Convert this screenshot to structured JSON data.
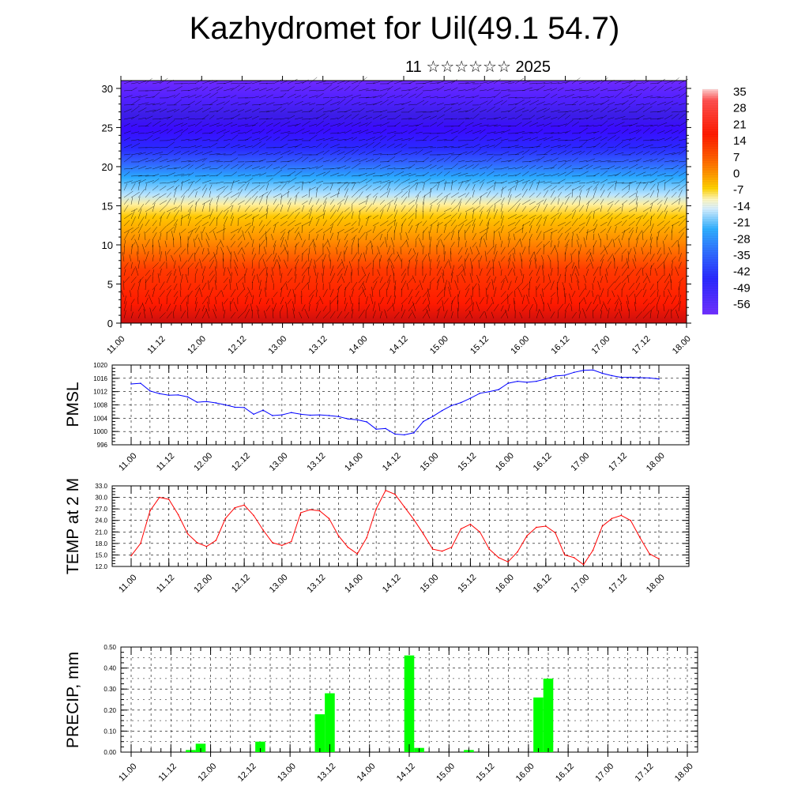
{
  "header": {
    "title": "Kazhydromet for Uil(49.1 54.7)",
    "subtitle": "11 ☆☆☆☆☆☆ 2025"
  },
  "time_labels": [
    "11.00",
    "11.12",
    "12.00",
    "12.12",
    "13.00",
    "13.12",
    "14.00",
    "14.12",
    "15.00",
    "15.12",
    "16.00",
    "16.12",
    "17.00",
    "17.12",
    "18.00"
  ],
  "colorbar": {
    "labels": [
      "35",
      "28",
      "21",
      "14",
      "7",
      "0",
      "-7",
      "-14",
      "-21",
      "-28",
      "-35",
      "-42",
      "-49",
      "-56"
    ]
  },
  "chart_data": [
    {
      "type": "heatmap",
      "name": "temperature-wind-cross-section",
      "x_ticks": [
        "11.00",
        "11.12",
        "12.00",
        "12.12",
        "13.00",
        "13.12",
        "14.00",
        "14.12",
        "15.00",
        "15.12",
        "16.00",
        "16.12",
        "17.00",
        "17.12",
        "18.00"
      ],
      "y_ticks": [
        "0",
        "5",
        "10",
        "15",
        "20",
        "25",
        "30"
      ],
      "ylim": [
        0,
        31
      ],
      "colorbar_range": [
        -56,
        35
      ],
      "description_levels": [
        {
          "level_km": 0,
          "value": 28
        },
        {
          "level_km": 5,
          "value": 24
        },
        {
          "level_km": 10,
          "value": 14
        },
        {
          "level_km": 14,
          "value": -2
        },
        {
          "level_km": 17,
          "value": -14
        },
        {
          "level_km": 20,
          "value": -30
        },
        {
          "level_km": 23,
          "value": -48
        },
        {
          "level_km": 26,
          "value": -58
        },
        {
          "level_km": 31,
          "value": -52
        }
      ]
    },
    {
      "type": "line",
      "name": "pmsl",
      "ylabel": "PMSL",
      "y_ticks": [
        "1020",
        "1016",
        "1012",
        "1008",
        "1004",
        "1000",
        "996"
      ],
      "ylim": [
        996,
        1020
      ],
      "x_ticks": [
        "11.00",
        "11.12",
        "12.00",
        "12.12",
        "13.00",
        "13.12",
        "14.00",
        "14.12",
        "15.00",
        "15.12",
        "16.00",
        "16.12",
        "17.00",
        "17.12",
        "18.00"
      ],
      "x": [
        0,
        3,
        6,
        9,
        12,
        15,
        18,
        21,
        24,
        27,
        30,
        33,
        36,
        39,
        42,
        45,
        48,
        51,
        54,
        57,
        60,
        63,
        66,
        69,
        72,
        75,
        78,
        81,
        84,
        87,
        90,
        93,
        96,
        99,
        102,
        105,
        108,
        111,
        114,
        117,
        120,
        123,
        126,
        129,
        132,
        135,
        138,
        141,
        144,
        147,
        150,
        153,
        156,
        159,
        162,
        165,
        168
      ],
      "values": [
        1014.3,
        1014.5,
        1012.2,
        1011.4,
        1010.9,
        1011.0,
        1010.4,
        1008.8,
        1009.0,
        1008.6,
        1008.0,
        1007.3,
        1007.2,
        1005.2,
        1006.4,
        1004.8,
        1005.0,
        1005.7,
        1005.2,
        1004.9,
        1005.0,
        1004.8,
        1004.5,
        1003.8,
        1003.5,
        1002.9,
        1000.7,
        1000.9,
        999.2,
        999.0,
        999.6,
        1003.0,
        1004.5,
        1006.3,
        1007.8,
        1008.7,
        1010.0,
        1011.5,
        1012.0,
        1012.6,
        1014.5,
        1015.1,
        1014.8,
        1015.1,
        1015.8,
        1016.7,
        1016.9,
        1017.8,
        1018.4,
        1018.5,
        1017.5,
        1016.8,
        1016.3,
        1016.3,
        1016.2,
        1016.1,
        1015.8
      ],
      "color": "#0000ff"
    },
    {
      "type": "line",
      "name": "temp-2m",
      "ylabel": "TEMP at 2 M",
      "y_ticks": [
        "33.0",
        "30.0",
        "27.0",
        "24.0",
        "21.0",
        "18.0",
        "15.0",
        "12.0"
      ],
      "ylim": [
        12,
        33
      ],
      "x_ticks": [
        "11.00",
        "11.12",
        "12.00",
        "12.12",
        "13.00",
        "13.12",
        "14.00",
        "14.12",
        "15.00",
        "15.12",
        "16.00",
        "16.12",
        "17.00",
        "17.12",
        "18.00"
      ],
      "x": [
        0,
        3,
        6,
        9,
        12,
        15,
        18,
        21,
        24,
        27,
        30,
        33,
        36,
        39,
        42,
        45,
        48,
        51,
        54,
        57,
        60,
        63,
        66,
        69,
        72,
        75,
        78,
        81,
        84,
        87,
        90,
        93,
        96,
        99,
        102,
        105,
        108,
        111,
        114,
        117,
        120,
        123,
        126,
        129,
        132,
        135,
        138,
        141,
        144,
        147,
        150,
        153,
        156,
        159,
        162,
        165,
        168
      ],
      "values": [
        14.8,
        18.0,
        26.5,
        30.0,
        29.5,
        25.5,
        20.5,
        18.2,
        17.2,
        18.8,
        24.5,
        27.3,
        28.0,
        25.3,
        21.5,
        18.2,
        17.5,
        18.5,
        26.0,
        26.8,
        26.5,
        24.5,
        20.0,
        17.0,
        15.3,
        19.5,
        27.0,
        31.8,
        30.8,
        27.5,
        24.2,
        20.5,
        16.5,
        16.0,
        17.0,
        21.8,
        23.0,
        21.0,
        16.5,
        14.3,
        13.2,
        15.8,
        20.0,
        22.2,
        22.5,
        20.8,
        15.0,
        14.3,
        12.5,
        16.2,
        22.5,
        24.5,
        25.3,
        24.0,
        19.5,
        15.3,
        14.0
      ],
      "color": "#ff0000"
    },
    {
      "type": "bar",
      "name": "precip",
      "ylabel": "PRECIP, mm",
      "y_ticks": [
        "0.50",
        "0.40",
        "0.30",
        "0.20",
        "0.10",
        "0.00"
      ],
      "ylim": [
        0,
        0.5
      ],
      "x_ticks": [
        "11.00",
        "11.12",
        "12.00",
        "12.12",
        "13.00",
        "13.12",
        "14.00",
        "14.12",
        "15.00",
        "15.12",
        "16.00",
        "16.12",
        "17.00",
        "17.12",
        "18.00"
      ],
      "x": [
        18,
        21,
        39,
        57,
        60,
        84,
        87,
        102,
        123,
        126
      ],
      "values": [
        0.01,
        0.04,
        0.05,
        0.18,
        0.28,
        0.46,
        0.02,
        0.01,
        0.26,
        0.35
      ],
      "color": "#00ff00"
    }
  ]
}
